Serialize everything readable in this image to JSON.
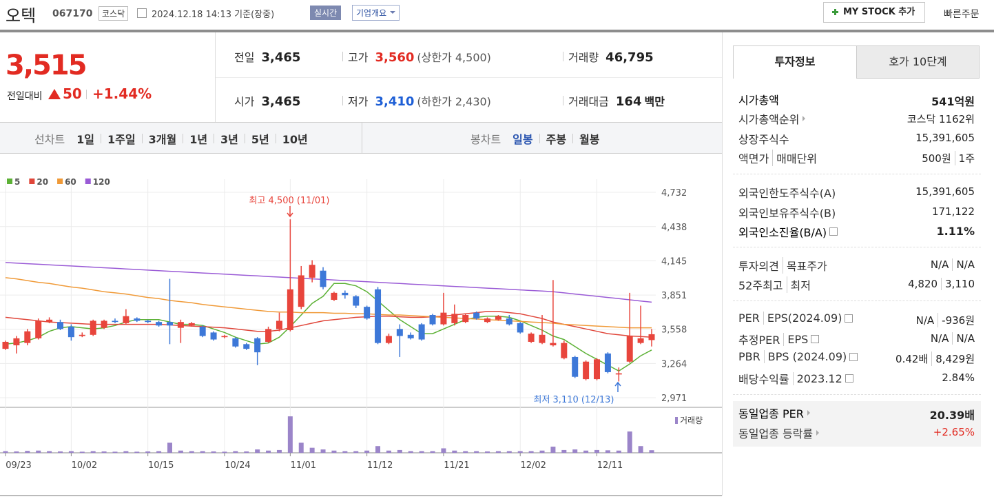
{
  "header": {
    "name": "오텍",
    "code": "067170",
    "market": "코스닥",
    "timestamp": "2024.12.18 14:13 기준(장중)",
    "realtime": "실시간",
    "company_info": "기업개요",
    "my_stock": "MY STOCK 추가",
    "quick_order": "빠른주문"
  },
  "price": {
    "current": "3,515",
    "change_label": "전일대비",
    "change": "50",
    "change_rate": "+1.44%",
    "color": "#e22b22"
  },
  "summary": [
    {
      "label": "전일",
      "value": "3,465"
    },
    {
      "label": "고가",
      "value": "3,560",
      "color": "#e22b22",
      "extra": "(상한가 4,500)"
    },
    {
      "label": "거래량",
      "value": "46,795"
    },
    {
      "label": "시가",
      "value": "3,465"
    },
    {
      "label": "저가",
      "value": "3,410",
      "color": "#1e5fd6",
      "extra": "(하한가 2,430)"
    },
    {
      "label": "거래대금",
      "value": "164",
      "extra": "백만"
    }
  ],
  "periods": {
    "line_label": "선차트",
    "line_options": [
      "1일",
      "1주일",
      "3개월",
      "1년",
      "3년",
      "5년",
      "10년"
    ],
    "candle_label": "봉차트",
    "candle_options": [
      "일봉",
      "주봉",
      "월봉"
    ]
  },
  "chart_data": {
    "type": "candlestick",
    "categories": [
      "09/23",
      null,
      null,
      null,
      null,
      null,
      "10/02",
      null,
      null,
      null,
      null,
      null,
      null,
      "10/15",
      null,
      null,
      null,
      null,
      null,
      null,
      "10/24",
      null,
      null,
      null,
      null,
      null,
      "11/01",
      null,
      null,
      null,
      null,
      null,
      null,
      "11/12",
      null,
      null,
      null,
      null,
      null,
      null,
      "11/21",
      null,
      null,
      null,
      null,
      null,
      null,
      "12/02",
      null,
      null,
      null,
      null,
      null,
      null,
      "12/11",
      null,
      null,
      null,
      null,
      null
    ],
    "open": [
      3390,
      3420,
      3440,
      3480,
      3620,
      3620,
      3580,
      3500,
      3510,
      3570,
      3630,
      3610,
      3650,
      3630,
      3620,
      3620,
      3570,
      3590,
      3580,
      3530,
      3490,
      3480,
      3430,
      3480,
      3450,
      3560,
      3550,
      3750,
      4000,
      4060,
      3810,
      3870,
      3840,
      3750,
      3900,
      3440,
      3560,
      3510,
      3600,
      3680,
      3600,
      3610,
      3620,
      3700,
      3620,
      3640,
      3650,
      3610,
      3450,
      3440,
      3420,
      3310,
      3320,
      3130,
      3130,
      3350,
      3170,
      3280,
      3440,
      3465
    ],
    "high": [
      3460,
      3500,
      3560,
      3650,
      3660,
      3640,
      3600,
      3530,
      3640,
      3640,
      3650,
      3730,
      3660,
      3640,
      3630,
      3990,
      3640,
      3620,
      3590,
      3540,
      3510,
      3490,
      3440,
      3490,
      3580,
      3700,
      4500,
      4100,
      4150,
      4090,
      3880,
      3890,
      3850,
      3760,
      3920,
      3520,
      3600,
      3530,
      3610,
      3690,
      3870,
      3770,
      3690,
      3710,
      3660,
      3680,
      3680,
      3620,
      3530,
      3680,
      3980,
      3460,
      3330,
      3290,
      3310,
      3360,
      3230,
      3870,
      3760,
      3560
    ],
    "low": [
      3380,
      3350,
      3420,
      3470,
      3610,
      3550,
      3460,
      3490,
      3500,
      3560,
      3610,
      3600,
      3620,
      3610,
      3580,
      3430,
      3440,
      3580,
      3490,
      3460,
      3480,
      3400,
      3380,
      3250,
      3440,
      3540,
      3540,
      3730,
      3960,
      3900,
      3800,
      3820,
      3740,
      3640,
      3430,
      3430,
      3320,
      3470,
      3460,
      3590,
      3590,
      3590,
      3610,
      3640,
      3610,
      3630,
      3590,
      3520,
      3440,
      3430,
      3410,
      3300,
      3140,
      3120,
      3120,
      3180,
      3110,
      3270,
      3430,
      3410
    ],
    "close": [
      3450,
      3480,
      3540,
      3630,
      3640,
      3560,
      3490,
      3510,
      3630,
      3630,
      3620,
      3670,
      3630,
      3620,
      3590,
      3590,
      3620,
      3610,
      3500,
      3470,
      3500,
      3410,
      3390,
      3360,
      3560,
      3630,
      3900,
      4020,
      4110,
      3920,
      3870,
      3850,
      3760,
      3650,
      3440,
      3500,
      3500,
      3480,
      3470,
      3600,
      3700,
      3690,
      3680,
      3650,
      3650,
      3670,
      3600,
      3530,
      3520,
      3510,
      3440,
      3440,
      3150,
      3280,
      3300,
      3190,
      3180,
      3500,
      3480,
      3515
    ],
    "up_color": "#e8453c",
    "down_color": "#3d78d8",
    "ylim": [
      2971,
      4732
    ],
    "yticks": [
      {
        "value": 4732,
        "label": "4,732"
      },
      {
        "value": 4438,
        "label": "4,438"
      },
      {
        "value": 4145,
        "label": "4,145"
      },
      {
        "value": 3851,
        "label": "3,851"
      },
      {
        "value": 3558,
        "label": "3,558"
      },
      {
        "value": 3264,
        "label": "3,264"
      },
      {
        "value": 2971,
        "label": "2,971"
      }
    ],
    "grid": true,
    "moving_averages": [
      {
        "name": "5",
        "color": "#5cb135",
        "values": [
          3430,
          3440,
          3460,
          3490,
          3540,
          3570,
          3580,
          3570,
          3560,
          3570,
          3590,
          3620,
          3640,
          3640,
          3640,
          3620,
          3600,
          3600,
          3590,
          3560,
          3530,
          3490,
          3460,
          3430,
          3440,
          3490,
          3580,
          3680,
          3780,
          3840,
          3950,
          3950,
          3930,
          3880,
          3800,
          3720,
          3640,
          3580,
          3520,
          3520,
          3560,
          3600,
          3640,
          3660,
          3670,
          3670,
          3660,
          3630,
          3590,
          3550,
          3500,
          3470,
          3410,
          3350,
          3300,
          3250,
          3200,
          3260,
          3330,
          3380
        ]
      },
      {
        "name": "20",
        "color": "#e0463a",
        "values": [
          3660,
          3650,
          3640,
          3630,
          3620,
          3615,
          3610,
          3605,
          3600,
          3600,
          3600,
          3600,
          3600,
          3600,
          3600,
          3595,
          3590,
          3585,
          3580,
          3575,
          3570,
          3560,
          3550,
          3540,
          3540,
          3550,
          3570,
          3590,
          3610,
          3630,
          3640,
          3650,
          3660,
          3665,
          3670,
          3670,
          3665,
          3660,
          3660,
          3665,
          3670,
          3680,
          3690,
          3700,
          3710,
          3710,
          3700,
          3690,
          3670,
          3650,
          3620,
          3600,
          3580,
          3560,
          3540,
          3520,
          3510,
          3500,
          3495,
          3490
        ]
      },
      {
        "name": "60",
        "color": "#f09a38",
        "values": [
          4000,
          3990,
          3975,
          3960,
          3950,
          3935,
          3920,
          3910,
          3895,
          3880,
          3870,
          3860,
          3845,
          3830,
          3820,
          3805,
          3795,
          3785,
          3770,
          3760,
          3750,
          3740,
          3730,
          3720,
          3710,
          3705,
          3705,
          3700,
          3700,
          3700,
          3695,
          3695,
          3690,
          3690,
          3685,
          3680,
          3680,
          3675,
          3670,
          3665,
          3660,
          3655,
          3650,
          3645,
          3640,
          3635,
          3630,
          3625,
          3620,
          3615,
          3610,
          3600,
          3595,
          3590,
          3585,
          3580,
          3575,
          3570,
          3570,
          3570
        ]
      },
      {
        "name": "120",
        "color": "#9a5bd6",
        "values": [
          4130,
          4125,
          4120,
          4115,
          4110,
          4105,
          4100,
          4095,
          4090,
          4085,
          4080,
          4075,
          4070,
          4065,
          4060,
          4055,
          4050,
          4045,
          4040,
          4035,
          4030,
          4025,
          4020,
          4015,
          4010,
          4005,
          4000,
          3995,
          3990,
          3985,
          3980,
          3975,
          3970,
          3965,
          3960,
          3955,
          3950,
          3945,
          3940,
          3935,
          3930,
          3925,
          3920,
          3915,
          3910,
          3905,
          3900,
          3895,
          3890,
          3885,
          3880,
          3870,
          3860,
          3850,
          3840,
          3830,
          3820,
          3810,
          3800,
          3790
        ]
      }
    ],
    "volume": {
      "name": "거래량",
      "color": "#9b85c9",
      "ylim": [
        0,
        700000
      ],
      "values": [
        30000,
        25000,
        35000,
        40000,
        30000,
        25000,
        30000,
        20000,
        30000,
        25000,
        20000,
        30000,
        20000,
        25000,
        30000,
        180000,
        40000,
        30000,
        30000,
        25000,
        20000,
        30000,
        25000,
        60000,
        40000,
        50000,
        650000,
        180000,
        90000,
        60000,
        40000,
        30000,
        30000,
        40000,
        120000,
        40000,
        50000,
        30000,
        30000,
        30000,
        80000,
        40000,
        30000,
        30000,
        25000,
        30000,
        30000,
        30000,
        30000,
        40000,
        110000,
        50000,
        60000,
        40000,
        50000,
        45000,
        40000,
        380000,
        120000,
        46795
      ]
    },
    "annotations": [
      {
        "text": "최고 4,500 (11/01)",
        "color": "#e8453c"
      },
      {
        "text": "최저 3,110 (12/13)",
        "color": "#3d78d8"
      }
    ]
  },
  "invest_info": {
    "tabs": [
      "투자정보",
      "호가 10단계"
    ],
    "sections": [
      [
        {
          "label": [
            "시가총액"
          ],
          "value": [
            "541억원"
          ],
          "emphasis": true
        },
        {
          "label": [
            "시가총액순위"
          ],
          "value": [
            "코스닥 1162위"
          ],
          "link": true
        },
        {
          "label": [
            "상장주식수"
          ],
          "value": [
            "15,391,605"
          ]
        },
        {
          "label": [
            "액면가",
            "매매단위"
          ],
          "value": [
            "500원",
            "1주"
          ]
        }
      ],
      [
        {
          "label": [
            "외국인한도주식수(A)"
          ],
          "value": [
            "15,391,605"
          ]
        },
        {
          "label": [
            "외국인보유주식수(B)"
          ],
          "value": [
            "171,122"
          ]
        },
        {
          "label": [
            "외국인소진율(B/A)"
          ],
          "value": [
            "1.11%"
          ],
          "emphasis": true,
          "help": true
        }
      ],
      [
        {
          "label": [
            "투자의견",
            "목표주가"
          ],
          "value": [
            "N/A",
            "N/A"
          ]
        },
        {
          "label": [
            "52주최고",
            "최저"
          ],
          "value": [
            "4,820",
            "3,110"
          ]
        }
      ],
      [
        {
          "label": [
            "PER",
            "EPS(2024.09)"
          ],
          "value": [
            "N/A",
            "-936원"
          ],
          "help": true
        },
        {
          "label": [
            "추정PER",
            "EPS"
          ],
          "value": [
            "N/A",
            "N/A"
          ],
          "help": true
        },
        {
          "label": [
            "PBR",
            "BPS (2024.09)"
          ],
          "value": [
            "0.42배",
            "8,429원"
          ],
          "help": true
        },
        {
          "label": [
            "배당수익률",
            "2023.12"
          ],
          "value": [
            "2.84%"
          ],
          "help": true
        }
      ],
      [
        {
          "label": [
            "동일업종 PER"
          ],
          "value": [
            "20.39배"
          ],
          "emphasis": true,
          "link": true
        },
        {
          "label": [
            "동일업종 등락률"
          ],
          "value": [
            "+2.65%"
          ],
          "color": "#e22b22",
          "link": true
        }
      ]
    ]
  }
}
